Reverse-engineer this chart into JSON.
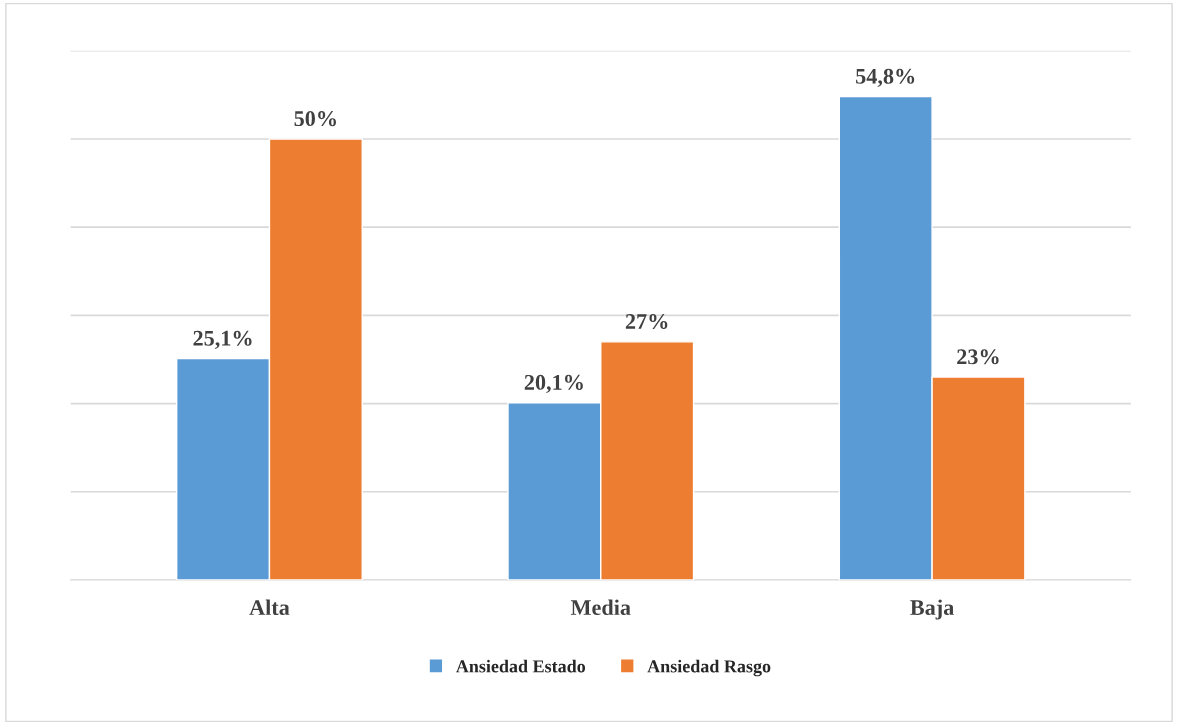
{
  "chart_data": {
    "type": "bar",
    "categories": [
      "Alta",
      "Media",
      "Baja"
    ],
    "series": [
      {
        "name": "Ansiedad Estado",
        "color": "#5b9bd5",
        "values": [
          25.1,
          20.1,
          54.8
        ],
        "value_labels": [
          "25,1%",
          "20,1%",
          "54,8%"
        ]
      },
      {
        "name": "Ansiedad Rasgo",
        "color": "#ed7d31",
        "values": [
          50,
          27,
          23
        ],
        "value_labels": [
          "50%",
          "27%",
          "23%"
        ]
      }
    ],
    "ylim": [
      0,
      60
    ],
    "yticks": [
      {
        "value": 0,
        "label": null
      },
      {
        "value": 10,
        "label": null
      },
      {
        "value": 20,
        "label": null
      },
      {
        "value": 30,
        "label": null
      },
      {
        "value": 40,
        "label": null
      },
      {
        "value": 50,
        "label": null
      },
      {
        "value": 60,
        "label": null
      }
    ],
    "tick_labels": "x",
    "grid": "y",
    "legend": "bottom"
  }
}
